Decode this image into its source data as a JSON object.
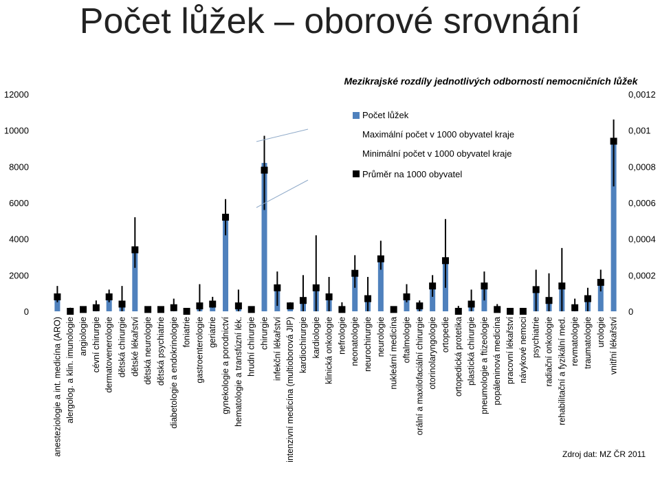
{
  "page_title": "Počet lůžek – oborové srovnání",
  "source_note": "Zdroj dat: MZ ČR 2011",
  "chart_data": {
    "type": "bar",
    "title": "Mezikrajské rozdíly jednotlivých odborností nemocničních lůžek",
    "xlabel": "",
    "ylabel": "",
    "ylim": [
      0,
      12000
    ],
    "y_ticks": [
      "0",
      "2000",
      "4000",
      "6000",
      "8000",
      "10000",
      "12000"
    ],
    "y2lim": [
      0,
      0.0012
    ],
    "y2_ticks": [
      "0",
      "0,0002",
      "0,0004",
      "0,0006",
      "0,0008",
      "0,001",
      "0,0012"
    ],
    "legend_position": "top-center",
    "grid": false,
    "bar_color": "#4F81BD",
    "categories": [
      "anesteziologie a int. medicína (ARO)",
      "alergolog. a klin. imunologie",
      "angiologie",
      "cévní chirurgie",
      "dermatovenerologie",
      "dětská chirurgie",
      "dětské lékařství",
      "dětská neurologie",
      "dětská psychiatrie",
      "diabetologie a endokrinologie",
      "foniatrie",
      "gastroenterologie",
      "geriatrie",
      "gynekologie a porodnictví",
      "hematologie a transfúzní lék.",
      "hrudní chirurgie",
      "chirurgie",
      "infekční lékařství",
      "intenzivní medicína (multioborová JIP)",
      "kardiochirurgie",
      "kardiologie",
      "klinická onkologie",
      "nefrologie",
      "neonatologie",
      "neurochirurgie",
      "neurologie",
      "nukleární medicína",
      "oftalmologie",
      "orální a maxilofaciální chirurgie",
      "otorinolaryngologie",
      "ortopedie",
      "ortopedická protetika",
      "plastická chirurgie",
      "pneumologie a ftizeologie",
      "popáleninová medicína",
      "pracovní lékařství",
      "návykové nemoci",
      "psychiatrie",
      "radiační onkologie",
      "rehabilitační a fyzikální med.",
      "revmatologie",
      "traumatologie",
      "urologie",
      "vnitřní lékařství"
    ],
    "series": [
      {
        "name": "Počet lůžek",
        "type": "bar",
        "axis": "left",
        "values": [
          800,
          20,
          50,
          150,
          850,
          450,
          3300,
          50,
          50,
          150,
          10,
          300,
          400,
          5200,
          300,
          150,
          8200,
          1250,
          350,
          550,
          1300,
          750,
          100,
          2100,
          650,
          2950,
          50,
          850,
          300,
          1350,
          2850,
          50,
          400,
          1400,
          150,
          50,
          30,
          1200,
          550,
          1400,
          200,
          700,
          1600,
          9400
        ]
      },
      {
        "name": "Maximální počet v 1000 obyvatel kraje",
        "type": "errorbar-high",
        "axis": "right",
        "values": [
          0.00014,
          2e-05,
          2e-05,
          6e-05,
          0.00012,
          0.00014,
          0.00052,
          2e-05,
          2e-05,
          7e-05,
          1e-05,
          0.00015,
          8e-05,
          0.00062,
          0.00012,
          2e-05,
          0.00097,
          0.00022,
          5e-05,
          0.0002,
          0.00042,
          0.00019,
          5e-05,
          0.00031,
          0.00019,
          0.00039,
          1e-05,
          0.00015,
          6e-05,
          0.0002,
          0.00051,
          3e-05,
          0.00012,
          0.00022,
          4e-05,
          1e-05,
          1e-05,
          0.00023,
          0.00021,
          0.00035,
          7e-05,
          0.00013,
          0.00023,
          0.00106
        ]
      },
      {
        "name": "Minimální počet v 1000 obyvatel kraje",
        "type": "errorbar-low",
        "axis": "right",
        "values": [
          5e-05,
          0.0,
          0.0,
          0.0,
          5e-05,
          0.0,
          0.00024,
          0.0,
          0.0,
          0.0,
          0.0,
          0.0,
          2e-05,
          0.00042,
          0.0,
          1e-05,
          0.00056,
          3e-05,
          3e-05,
          0.0,
          0.0,
          0.0,
          0.0,
          0.00013,
          0.0,
          0.00023,
          0.0,
          5e-05,
          0.0,
          8e-05,
          0.00013,
          0.0,
          0.0,
          6e-05,
          0.0,
          0.0,
          0.0,
          0.0,
          0.0,
          0.0,
          0.0,
          0.0,
          0.00011,
          0.00069
        ]
      },
      {
        "name": "Průměr na 1000 obyvatel",
        "type": "marker",
        "axis": "right",
        "values": [
          8e-05,
          0.0,
          1e-05,
          2e-05,
          8e-05,
          4e-05,
          0.00034,
          1e-05,
          1e-05,
          2e-05,
          0.0,
          3e-05,
          4e-05,
          0.00052,
          3e-05,
          1e-05,
          0.00078,
          0.00013,
          3e-05,
          6e-05,
          0.00013,
          8e-05,
          1e-05,
          0.00021,
          7e-05,
          0.00029,
          1e-05,
          8e-05,
          3e-05,
          0.00014,
          0.00028,
          0.0,
          4e-05,
          0.00014,
          1e-05,
          0.0,
          0.0,
          0.00012,
          6e-05,
          0.00014,
          2e-05,
          7e-05,
          0.00016,
          0.00094
        ]
      }
    ]
  }
}
